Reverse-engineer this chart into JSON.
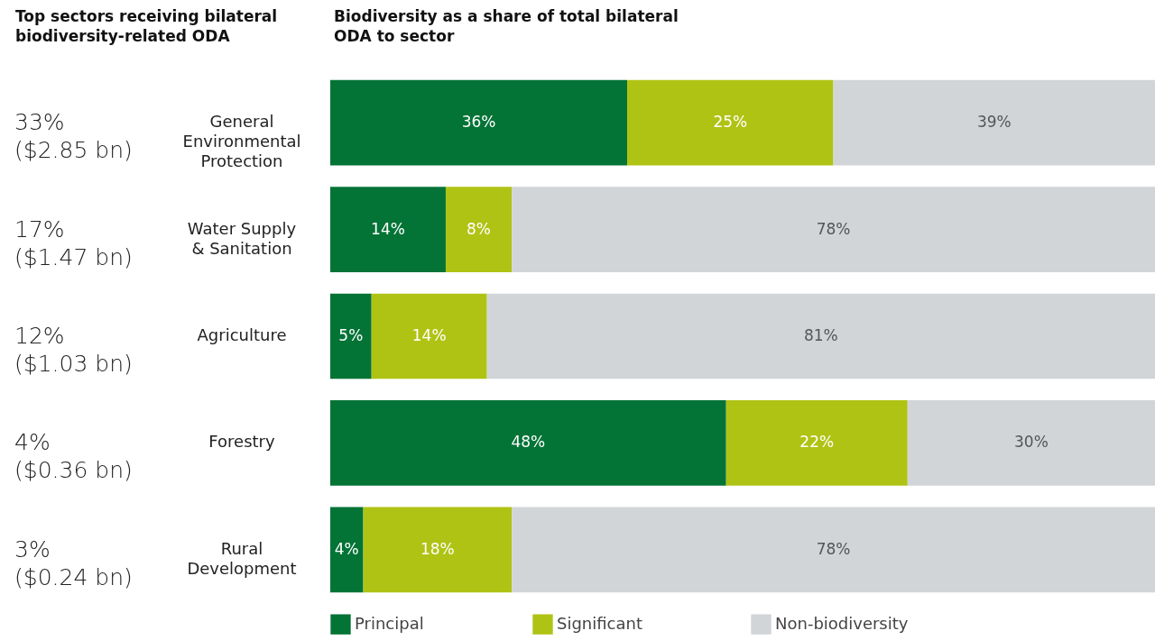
{
  "chart_data": {
    "type": "bar",
    "orientation": "horizontal",
    "stacked": true,
    "title": "Biodiversity as a share of total bilateral\nODA to sector",
    "ylabel": "Top sectors receiving bilateral\nbiodiversity-related ODA",
    "categories": [
      "General Environmental Protection",
      "Water Supply & Sanitation",
      "Agriculture",
      "Forestry",
      "Rural Development"
    ],
    "series": [
      {
        "name": "Principal",
        "color": "#037336",
        "values": [
          36,
          14,
          5,
          48,
          4
        ],
        "value_labels": [
          "36%",
          "14%",
          "5%",
          "48%",
          "4%"
        ]
      },
      {
        "name": "Significant",
        "color": "#afc314",
        "values": [
          25,
          8,
          14,
          22,
          18
        ],
        "value_labels": [
          "25%",
          "8%",
          "14%",
          "22%",
          "18%"
        ]
      },
      {
        "name": "Non-biodiversity",
        "color": "#d1d5d8",
        "values": [
          39,
          78,
          81,
          30,
          78
        ],
        "value_labels": [
          "39%",
          "78%",
          "81%",
          "30%",
          "78%"
        ]
      }
    ],
    "annotations": [
      "33%\n($2.85 bn)",
      "17%\n($1.47 bn)",
      "12%\n($1.03 bn)",
      "4%\n($0.36 bn)",
      "3%\n($0.24 bn)"
    ],
    "xlim": [
      0,
      100
    ],
    "tick_labels": "y",
    "legend": "bottom"
  }
}
